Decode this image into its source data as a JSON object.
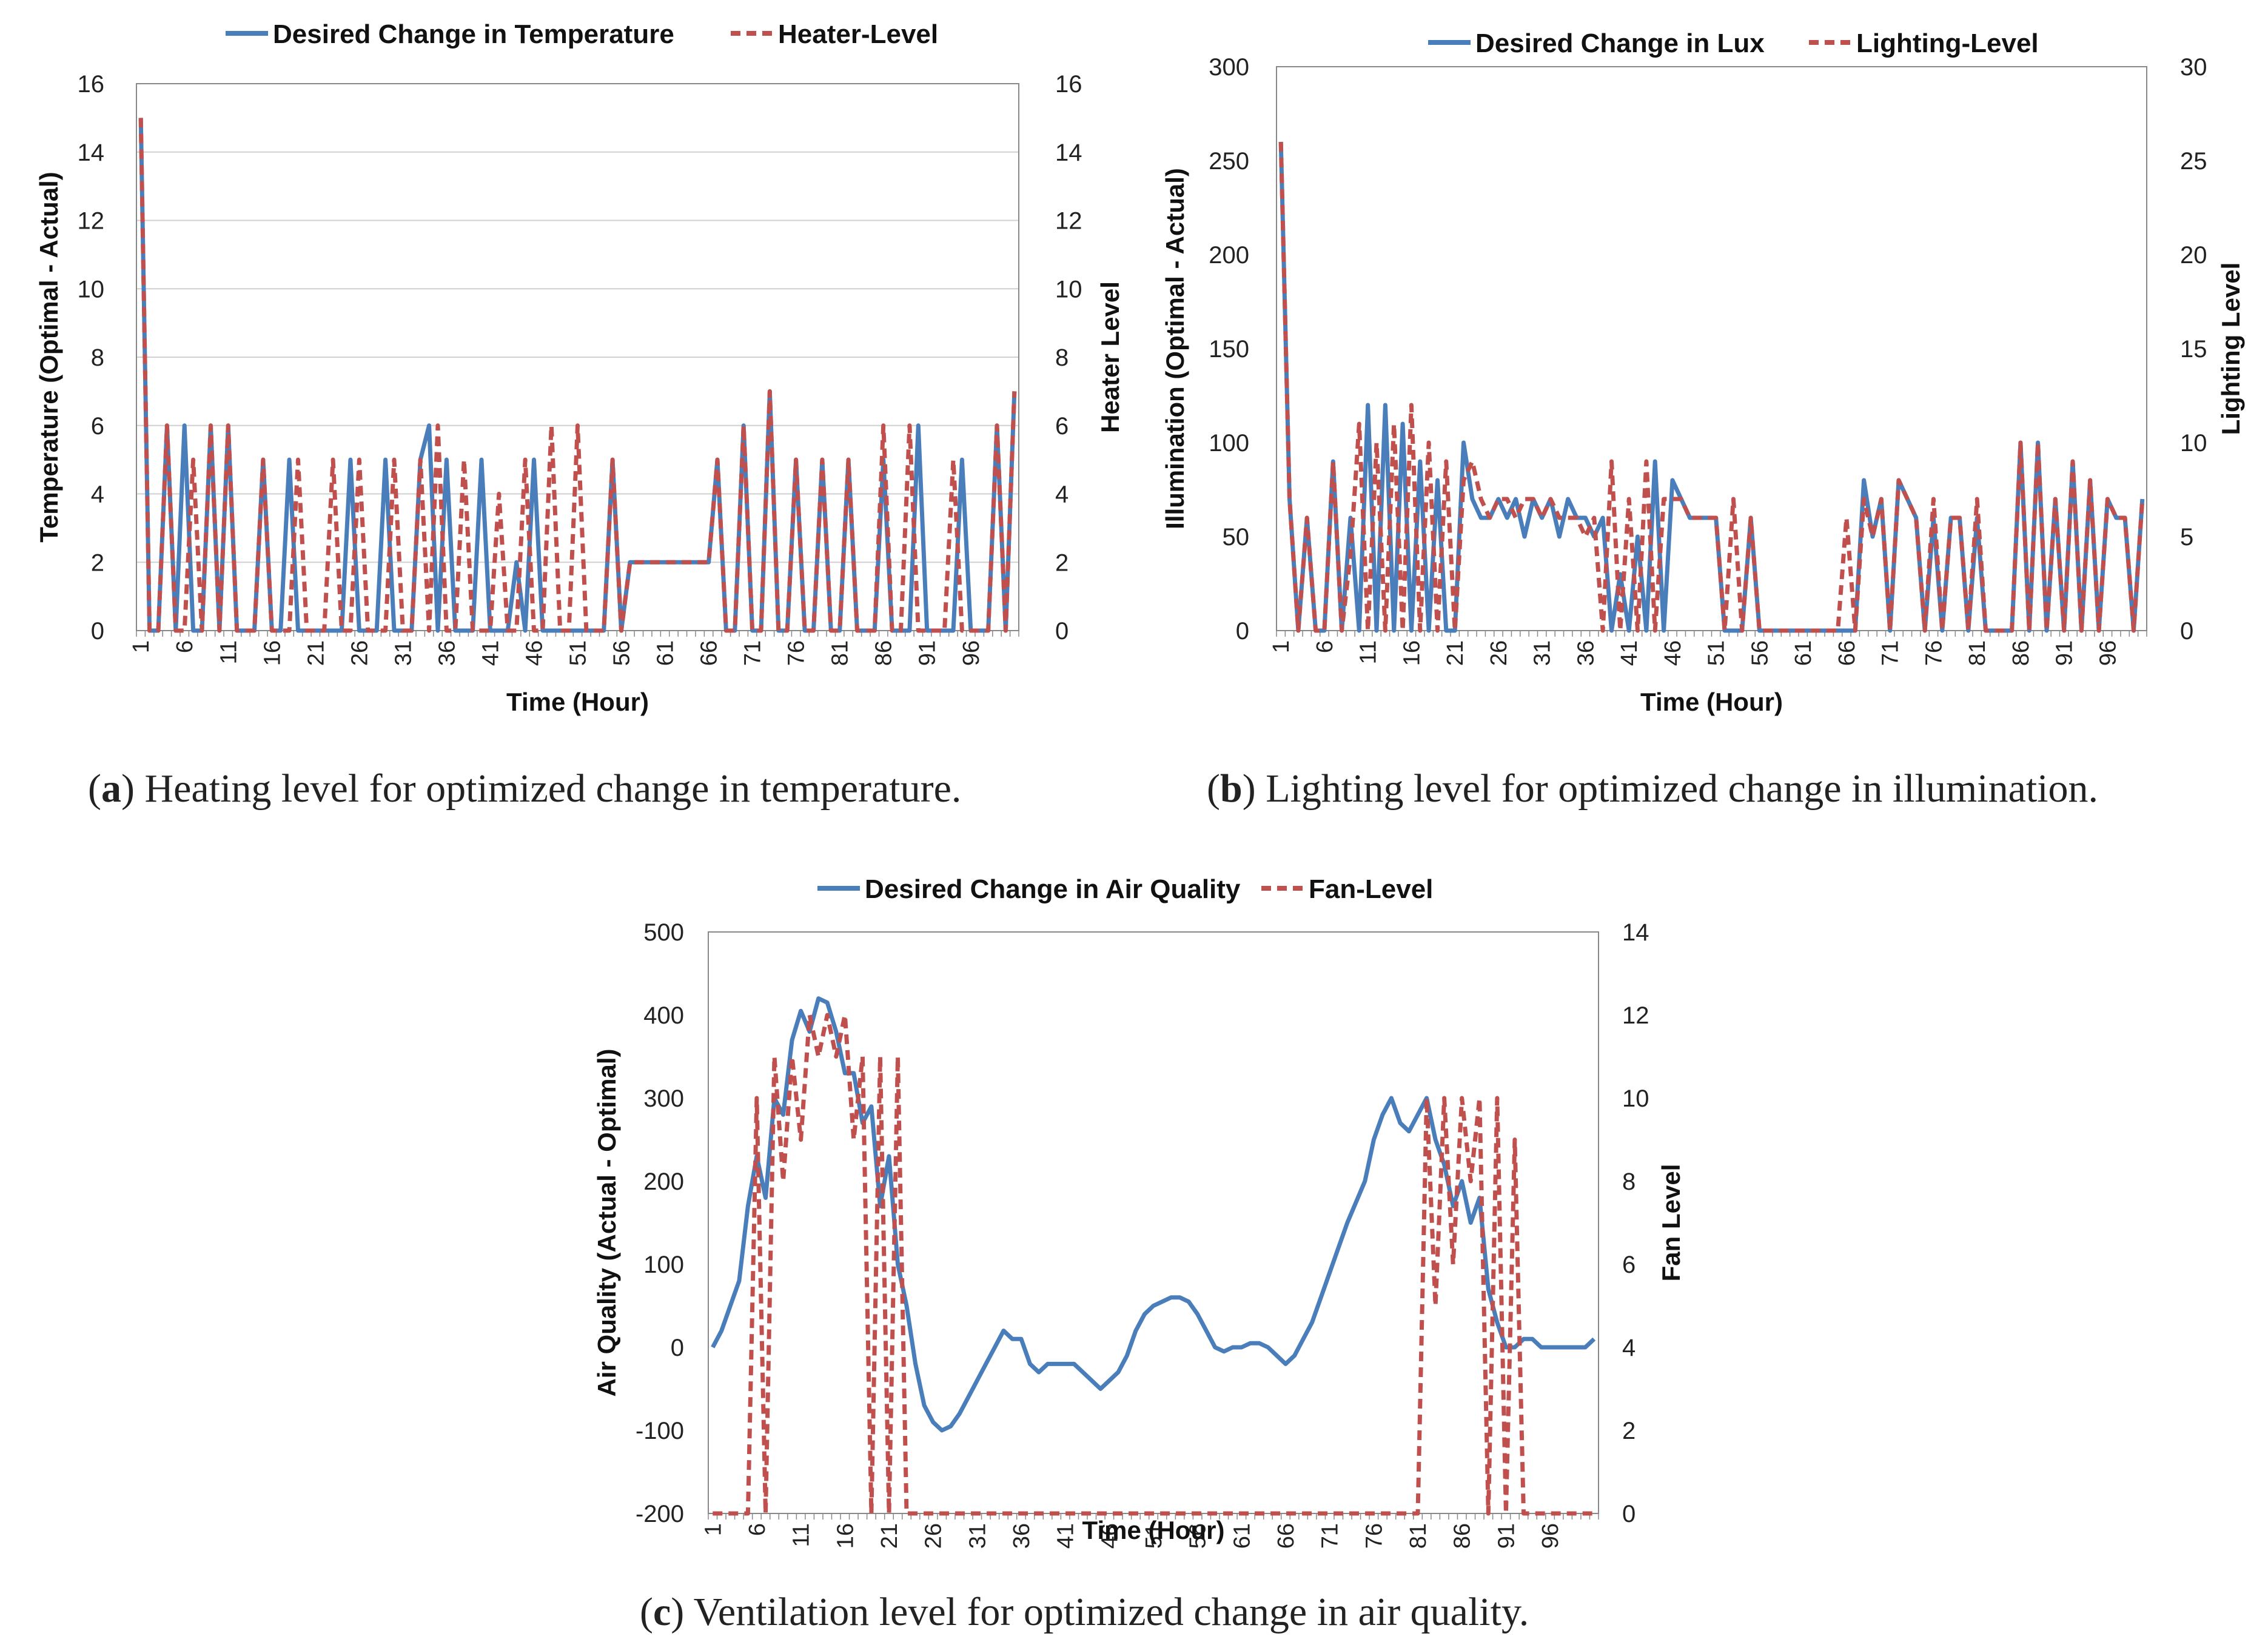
{
  "colors": {
    "desired": "#4a7ebb",
    "level": "#c0504d",
    "grid": "#d0d0d0",
    "axis": "#888888"
  },
  "captions": [
    {
      "paren_open": "(",
      "label": "a",
      "paren_close": ")",
      "text": " Heating level for optimized change in temperature."
    },
    {
      "paren_open": "(",
      "label": "b",
      "paren_close": ")",
      "text": " Lighting level for optimized change in illumination."
    },
    {
      "paren_open": "(",
      "label": "c",
      "paren_close": ")",
      "text": " Ventilation level for optimized change in air quality."
    }
  ],
  "chart_data": [
    {
      "id": "a",
      "type": "line",
      "title": "",
      "xlabel": "Time (Hour)",
      "ylabel": "Temperature (Optimal - Actual)",
      "y2label": "Heater Level",
      "ylim": [
        0,
        16
      ],
      "y2lim": [
        0,
        16
      ],
      "yticks": [
        "0",
        "2",
        "4",
        "6",
        "8",
        "10",
        "12",
        "14",
        "16"
      ],
      "y2ticks": [
        "0",
        "2",
        "4",
        "6",
        "8",
        "10",
        "12",
        "14",
        "16"
      ],
      "xticks": [
        "1",
        "6",
        "11",
        "16",
        "21",
        "26",
        "31",
        "36",
        "41",
        "46",
        "51",
        "56",
        "61",
        "66",
        "71",
        "76",
        "81",
        "86",
        "91",
        "96"
      ],
      "gridlines": true,
      "legend_position": "top",
      "series": [
        {
          "name": "Desired Change in Temperature",
          "axis": "left",
          "style": "solid",
          "values": [
            15,
            0,
            0,
            6,
            0,
            6,
            0,
            0,
            6,
            0,
            6,
            0,
            0,
            0,
            5,
            0,
            0,
            5,
            0,
            0,
            0,
            0,
            0,
            0,
            5,
            0,
            0,
            0,
            5,
            0,
            0,
            0,
            5,
            6,
            0,
            5,
            0,
            0,
            0,
            5,
            0,
            0,
            0,
            2,
            0,
            5,
            0,
            0,
            0,
            0,
            0,
            0,
            0,
            0,
            5,
            0,
            2,
            2,
            2,
            2,
            2,
            2,
            2,
            2,
            2,
            2,
            5,
            0,
            0,
            6,
            0,
            0,
            7,
            0,
            0,
            5,
            0,
            0,
            5,
            0,
            0,
            5,
            0,
            0,
            0,
            5,
            0,
            0,
            0,
            6,
            0,
            0,
            0,
            0,
            5,
            0,
            0,
            0,
            6,
            0,
            7
          ]
        },
        {
          "name": "Heater-Level",
          "axis": "right",
          "style": "dashed",
          "values": [
            15,
            0,
            0,
            6,
            0,
            0,
            5,
            0,
            6,
            0,
            6,
            0,
            0,
            0,
            5,
            0,
            0,
            0,
            5,
            0,
            0,
            0,
            5,
            0,
            0,
            5,
            0,
            0,
            0,
            5,
            0,
            0,
            5,
            0,
            6,
            0,
            0,
            5,
            0,
            0,
            0,
            4,
            0,
            0,
            5,
            0,
            0,
            6,
            0,
            0,
            6,
            0,
            0,
            0,
            5,
            0,
            2,
            2,
            2,
            2,
            2,
            2,
            2,
            2,
            2,
            2,
            5,
            0,
            0,
            6,
            0,
            0,
            7,
            0,
            0,
            5,
            0,
            0,
            5,
            0,
            0,
            5,
            0,
            0,
            0,
            6,
            0,
            0,
            6,
            0,
            0,
            0,
            0,
            5,
            0,
            0,
            0,
            0,
            6,
            0,
            7
          ]
        }
      ]
    },
    {
      "id": "b",
      "type": "line",
      "title": "",
      "xlabel": "Time (Hour)",
      "ylabel": "Illumination (Optimal - Actual)",
      "y2label": "Lighting Level",
      "ylim": [
        0,
        300
      ],
      "y2lim": [
        0,
        30
      ],
      "yticks": [
        "0",
        "50",
        "100",
        "150",
        "200",
        "250",
        "300"
      ],
      "y2ticks": [
        "0",
        "5",
        "10",
        "15",
        "20",
        "25",
        "30"
      ],
      "xticks": [
        "1",
        "6",
        "11",
        "16",
        "21",
        "26",
        "31",
        "36",
        "41",
        "46",
        "51",
        "56",
        "61",
        "66",
        "71",
        "76",
        "81",
        "86",
        "91",
        "96"
      ],
      "gridlines": false,
      "legend_position": "top",
      "series": [
        {
          "name": "Desired Change in Lux",
          "axis": "left",
          "style": "solid",
          "values": [
            260,
            70,
            0,
            60,
            0,
            0,
            90,
            0,
            60,
            0,
            120,
            0,
            120,
            0,
            110,
            0,
            90,
            0,
            80,
            0,
            0,
            100,
            70,
            60,
            60,
            70,
            60,
            70,
            50,
            70,
            60,
            70,
            50,
            70,
            60,
            60,
            50,
            60,
            0,
            30,
            0,
            50,
            0,
            90,
            0,
            80,
            70,
            60,
            60,
            60,
            60,
            0,
            0,
            0,
            60,
            0,
            0,
            0,
            0,
            0,
            0,
            0,
            0,
            0,
            0,
            0,
            0,
            80,
            50,
            70,
            0,
            80,
            70,
            60,
            0,
            60,
            0,
            60,
            60,
            0,
            60,
            0,
            0,
            0,
            0,
            100,
            0,
            100,
            0,
            70,
            0,
            90,
            0,
            80,
            0,
            70,
            60,
            60,
            0,
            70
          ]
        },
        {
          "name": "Lighting-Level",
          "axis": "right",
          "style": "dashed",
          "values": [
            26,
            7,
            0,
            6,
            0,
            0,
            9,
            0,
            4,
            11,
            0,
            10,
            0,
            11,
            0,
            12,
            0,
            10,
            0,
            9,
            0,
            8,
            9,
            7,
            6,
            7,
            7,
            6,
            7,
            7,
            6,
            7,
            6,
            6,
            6,
            5,
            6,
            0,
            9,
            0,
            7,
            0,
            9,
            0,
            7,
            7,
            7,
            6,
            6,
            6,
            6,
            0,
            7,
            0,
            6,
            0,
            0,
            0,
            0,
            0,
            0,
            0,
            0,
            0,
            0,
            6,
            0,
            7,
            5,
            7,
            0,
            8,
            7,
            6,
            0,
            7,
            0,
            6,
            6,
            0,
            7,
            0,
            0,
            0,
            0,
            10,
            0,
            10,
            0,
            7,
            0,
            9,
            0,
            8,
            0,
            7,
            6,
            6,
            0,
            7
          ]
        }
      ]
    },
    {
      "id": "c",
      "type": "line",
      "title": "",
      "xlabel": "Time (Hour)",
      "ylabel": "Air Quality (Actual - Optimal)",
      "y2label": "Fan Level",
      "ylim": [
        -200,
        500
      ],
      "y2lim": [
        0,
        14
      ],
      "yticks": [
        "-200",
        "-100",
        "0",
        "100",
        "200",
        "300",
        "400",
        "500"
      ],
      "y2ticks": [
        "0",
        "2",
        "4",
        "6",
        "8",
        "10",
        "12",
        "14"
      ],
      "xticks": [
        "1",
        "6",
        "11",
        "16",
        "21",
        "26",
        "31",
        "36",
        "41",
        "46",
        "51",
        "56",
        "61",
        "66",
        "71",
        "76",
        "81",
        "86",
        "91",
        "96"
      ],
      "gridlines": false,
      "legend_position": "top",
      "series": [
        {
          "name": "Desired Change in Air Quality",
          "axis": "left",
          "style": "solid",
          "values": [
            0,
            20,
            50,
            80,
            170,
            230,
            180,
            300,
            280,
            370,
            405,
            380,
            420,
            415,
            380,
            330,
            330,
            270,
            290,
            170,
            230,
            100,
            50,
            -20,
            -70,
            -90,
            -100,
            -95,
            -80,
            -60,
            -40,
            -20,
            0,
            20,
            10,
            10,
            -20,
            -30,
            -20,
            -20,
            -20,
            -20,
            -30,
            -40,
            -50,
            -40,
            -30,
            -10,
            20,
            40,
            50,
            55,
            60,
            60,
            55,
            40,
            20,
            0,
            -5,
            0,
            0,
            5,
            5,
            0,
            -10,
            -20,
            -10,
            10,
            30,
            60,
            90,
            120,
            150,
            175,
            200,
            250,
            280,
            300,
            270,
            260,
            280,
            300,
            250,
            220,
            170,
            200,
            150,
            180,
            70,
            30,
            0,
            0,
            10,
            10,
            0,
            0,
            0,
            0,
            0,
            0,
            10
          ]
        },
        {
          "name": "Fan-Level",
          "axis": "right",
          "style": "dashed",
          "values": [
            0,
            0,
            0,
            0,
            0,
            10,
            0,
            11,
            8,
            11,
            9,
            12,
            11,
            12,
            11,
            12,
            9,
            11,
            0,
            11,
            0,
            11,
            0,
            0,
            0,
            0,
            0,
            0,
            0,
            0,
            0,
            0,
            0,
            0,
            0,
            0,
            0,
            0,
            0,
            0,
            0,
            0,
            0,
            0,
            0,
            0,
            0,
            0,
            0,
            0,
            0,
            0,
            0,
            0,
            0,
            0,
            0,
            0,
            0,
            0,
            0,
            0,
            0,
            0,
            0,
            0,
            0,
            0,
            0,
            0,
            0,
            0,
            0,
            0,
            0,
            0,
            0,
            0,
            0,
            0,
            0,
            10,
            5,
            10,
            6,
            10,
            8,
            10,
            0,
            10,
            0,
            9,
            0,
            0,
            0,
            0,
            0,
            0,
            0,
            0,
            0
          ]
        }
      ]
    }
  ]
}
